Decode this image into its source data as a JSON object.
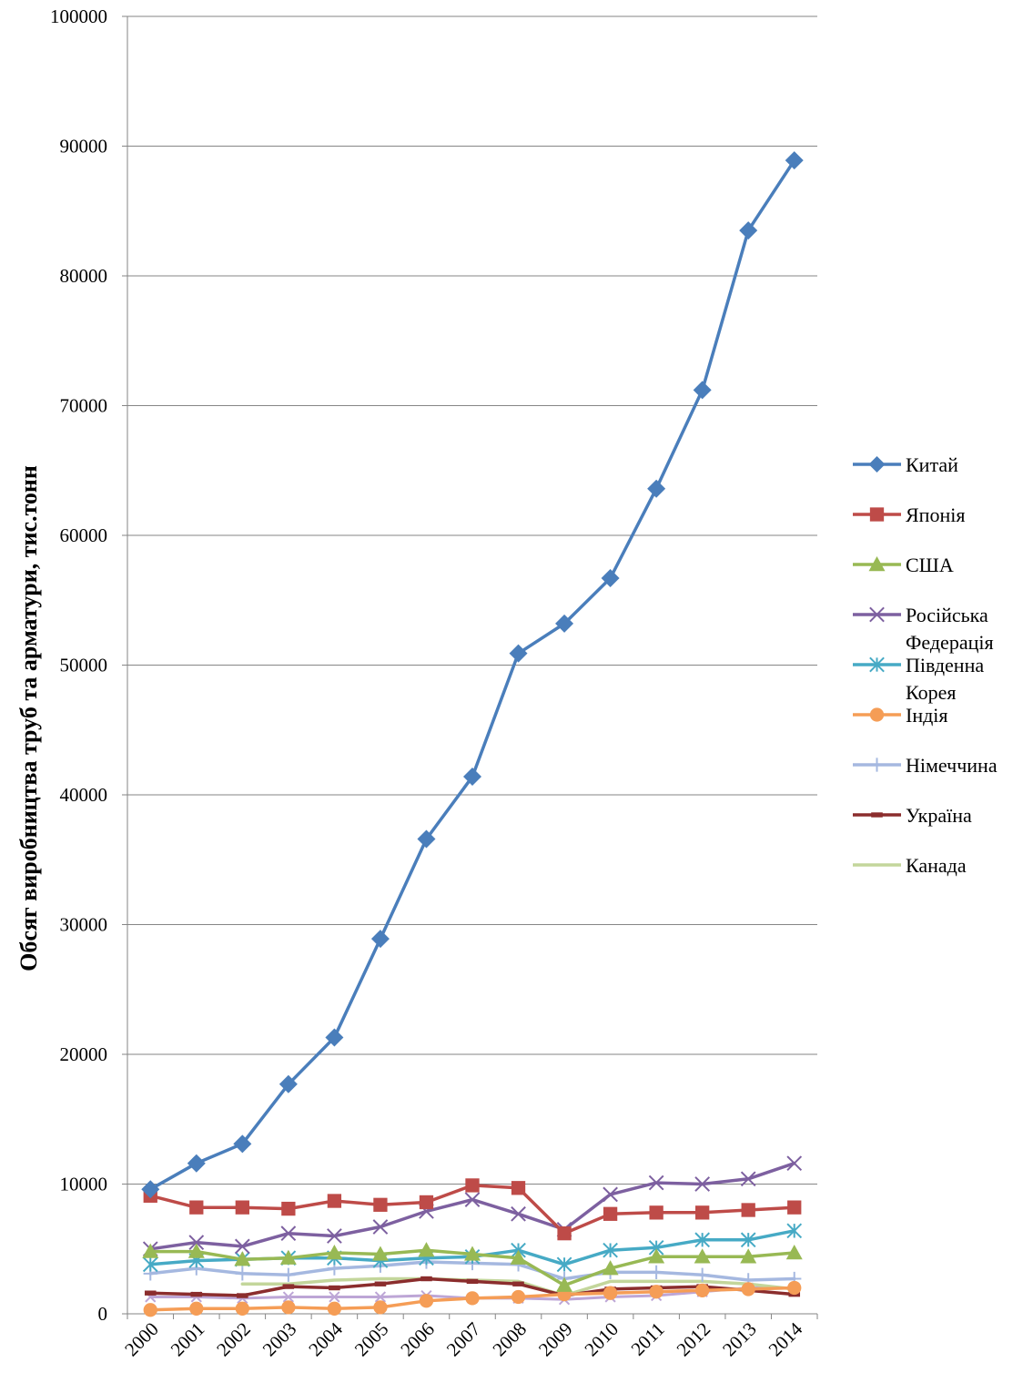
{
  "chart_data": {
    "type": "line",
    "title": "",
    "xlabel": "",
    "ylabel": "Обсяг виробництва труб та арматури, тис.тонн",
    "ylim": [
      0,
      100000
    ],
    "yticks": [
      0,
      10000,
      20000,
      30000,
      40000,
      50000,
      60000,
      70000,
      80000,
      90000,
      100000
    ],
    "grid": "horizontal",
    "legend_position": "right",
    "x": [
      "2000",
      "2001",
      "2002",
      "2003",
      "2004",
      "2005",
      "2006",
      "2007",
      "2008",
      "2009",
      "2010",
      "2011",
      "2012",
      "2013",
      "2014"
    ],
    "series": [
      {
        "name": "Китай",
        "color": "#4A7EBB",
        "marker": "diamond",
        "values": [
          9600,
          11600,
          13100,
          17700,
          21300,
          28900,
          36600,
          41400,
          50900,
          53200,
          56700,
          63600,
          71200,
          83500,
          88900
        ]
      },
      {
        "name": "Японія",
        "color": "#BE4B48",
        "marker": "square",
        "values": [
          9100,
          8200,
          8200,
          8100,
          8700,
          8400,
          8600,
          9900,
          9700,
          6200,
          7700,
          7800,
          7800,
          8000,
          8200
        ]
      },
      {
        "name": "США",
        "color": "#98B954",
        "marker": "triangle",
        "values": [
          4800,
          4800,
          4200,
          4300,
          4700,
          4600,
          4900,
          4600,
          4300,
          2200,
          3500,
          4400,
          4400,
          4400,
          4700
        ]
      },
      {
        "name": "Російська Федерація",
        "color": "#7D60A0",
        "marker": "x",
        "values": [
          5000,
          5500,
          5200,
          6200,
          6000,
          6700,
          7900,
          8800,
          7700,
          6500,
          9200,
          10100,
          10000,
          10400,
          11600
        ]
      },
      {
        "name": "Південна Корея",
        "color": "#46AAC5",
        "marker": "asterisk",
        "values": [
          3800,
          4100,
          4200,
          4300,
          4300,
          4100,
          4300,
          4400,
          4900,
          3800,
          4900,
          5100,
          5700,
          5700,
          6400
        ]
      },
      {
        "name": "Індія",
        "color": "#F59D56",
        "marker": "circle",
        "values": [
          300,
          400,
          400,
          500,
          400,
          500,
          1000,
          1200,
          1300,
          1500,
          1600,
          1700,
          1800,
          1900,
          2000
        ]
      },
      {
        "name": "Німеччина",
        "color": "#A5B8E0",
        "marker": "plus",
        "values": [
          3100,
          3500,
          3100,
          3000,
          3500,
          3700,
          4000,
          3900,
          3800,
          2700,
          3200,
          3200,
          3000,
          2600,
          2700
        ]
      },
      {
        "name": "Україна",
        "color": "#8B2D2D",
        "marker": "dash",
        "values": [
          1600,
          1500,
          1400,
          2100,
          2000,
          2300,
          2700,
          2500,
          2300,
          1400,
          1900,
          2000,
          2100,
          1800,
          1500
        ]
      },
      {
        "name": "Канада",
        "color": "#C3D69B",
        "marker": "none",
        "values": [
          2800,
          null,
          2300,
          2300,
          2600,
          2700,
          2700,
          2600,
          2500,
          1400,
          2500,
          2500,
          2500,
          2300,
          1900
        ]
      },
      {
        "name": "",
        "color": "#BDA6D6",
        "marker": "x-small",
        "values": [
          1300,
          1300,
          1200,
          1300,
          1300,
          1300,
          1400,
          1200,
          1200,
          1100,
          1300,
          1400,
          1700,
          2000,
          2000
        ]
      }
    ],
    "legend_order": [
      "Китай",
      "Японія",
      "США",
      "Російська Федерація",
      "Південна Корея",
      "Індія",
      "Німеччина",
      "Україна",
      "Канада"
    ],
    "legend_labels": [
      [
        "Китай"
      ],
      [
        "Японія"
      ],
      [
        "США"
      ],
      [
        "Російська",
        "Федерація"
      ],
      [
        "Південна",
        "Корея"
      ],
      [
        "Індія"
      ],
      [
        "Німеччина"
      ],
      [
        "Україна"
      ],
      [
        "Канада"
      ]
    ]
  }
}
